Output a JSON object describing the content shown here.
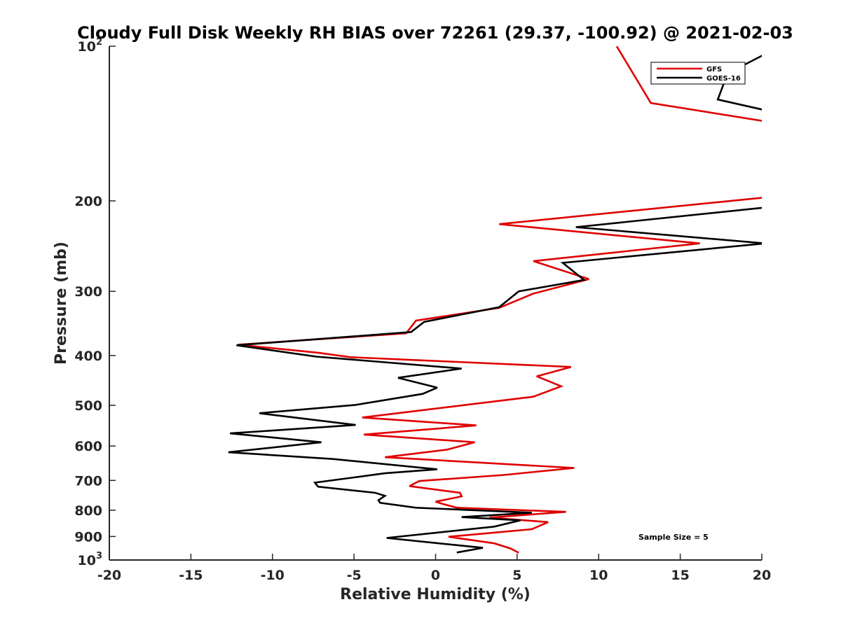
{
  "chart_data": {
    "type": "line",
    "title": "Cloudy Full Disk Weekly RH BIAS over 72261 (29.37, -100.92) @ 2021-02-03",
    "xlabel": "Relative Humidity (%)",
    "ylabel": "Pressure (mb)",
    "xlim": [
      -20,
      20
    ],
    "ylim": [
      100,
      1000
    ],
    "yscale": "log",
    "y_reversed": true,
    "grid": false,
    "legend_position": "top-right",
    "x_ticks": [
      "-20",
      "-15",
      "-10",
      "-5",
      "0",
      "5",
      "10",
      "15",
      "20"
    ],
    "y_ticks": [
      {
        "value": 100,
        "base": "10",
        "exp": "2"
      },
      {
        "value": 200,
        "label": "200"
      },
      {
        "value": 300,
        "label": "300"
      },
      {
        "value": 400,
        "label": "400"
      },
      {
        "value": 500,
        "label": "500"
      },
      {
        "value": 600,
        "label": "600"
      },
      {
        "value": 700,
        "label": "700"
      },
      {
        "value": 800,
        "label": "800"
      },
      {
        "value": 900,
        "label": "900"
      },
      {
        "value": 1000,
        "base": "10",
        "exp": "3"
      }
    ],
    "annotation": "Sample Size = 5",
    "series": [
      {
        "name": "GFS",
        "color": "#e00000",
        "points": [
          [
            11.1,
            100
          ],
          [
            13.2,
            129
          ],
          [
            20.2,
            140
          ],
          [
            20.2,
            197
          ],
          [
            3.9,
            222
          ],
          [
            16.2,
            242
          ],
          [
            6.0,
            262
          ],
          [
            9.4,
            284
          ],
          [
            6.0,
            303
          ],
          [
            3.9,
            323
          ],
          [
            -1.2,
            342
          ],
          [
            -1.8,
            362
          ],
          [
            -12.1,
            381
          ],
          [
            -7.2,
            395
          ],
          [
            -5.2,
            403
          ],
          [
            8.3,
            421
          ],
          [
            6.2,
            439
          ],
          [
            7.7,
            459
          ],
          [
            6.0,
            481
          ],
          [
            -4.5,
            528
          ],
          [
            2.5,
            547
          ],
          [
            -4.4,
            570
          ],
          [
            2.4,
            590
          ],
          [
            0.7,
            610
          ],
          [
            -3.1,
            631
          ],
          [
            8.5,
            662
          ],
          [
            4.2,
            683
          ],
          [
            -1.0,
            702
          ],
          [
            -1.6,
            718
          ],
          [
            1.5,
            740
          ],
          [
            1.6,
            752
          ],
          [
            0.0,
            770
          ],
          [
            0.4,
            777
          ],
          [
            1.3,
            791
          ],
          [
            8.0,
            806
          ],
          [
            3.3,
            827
          ],
          [
            6.9,
            844
          ],
          [
            5.9,
            871
          ],
          [
            0.8,
            901
          ],
          [
            3.6,
            928
          ],
          [
            4.6,
            950
          ],
          [
            5.1,
            968
          ]
        ]
      },
      {
        "name": "GOES-16",
        "color": "#000000",
        "points": [
          [
            20.1,
            104
          ],
          [
            17.9,
            113
          ],
          [
            17.3,
            127
          ],
          [
            20.1,
            133
          ],
          [
            20.2,
            206
          ],
          [
            8.6,
            225
          ],
          [
            20.2,
            242
          ],
          [
            7.8,
            264
          ],
          [
            9.1,
            285
          ],
          [
            5.1,
            300
          ],
          [
            3.9,
            322
          ],
          [
            -0.7,
            344
          ],
          [
            -1.5,
            360
          ],
          [
            -12.2,
            382
          ],
          [
            -7.3,
            402
          ],
          [
            1.6,
            424
          ],
          [
            -2.3,
            442
          ],
          [
            0.1,
            462
          ],
          [
            -0.8,
            475
          ],
          [
            -4.9,
            499
          ],
          [
            -10.8,
            518
          ],
          [
            -4.9,
            546
          ],
          [
            -12.6,
            567
          ],
          [
            -7.0,
            590
          ],
          [
            -12.7,
            617
          ],
          [
            -6.3,
            636
          ],
          [
            0.1,
            666
          ],
          [
            -3.1,
            678
          ],
          [
            -7.4,
            707
          ],
          [
            -7.2,
            720
          ],
          [
            -3.7,
            740
          ],
          [
            -3.1,
            750
          ],
          [
            -3.5,
            765
          ],
          [
            -3.4,
            774
          ],
          [
            -1.2,
            791
          ],
          [
            5.9,
            809
          ],
          [
            1.6,
            825
          ],
          [
            5.2,
            837
          ],
          [
            3.6,
            861
          ],
          [
            -3.0,
            906
          ],
          [
            2.9,
            947
          ],
          [
            1.3,
            967
          ]
        ]
      }
    ]
  }
}
